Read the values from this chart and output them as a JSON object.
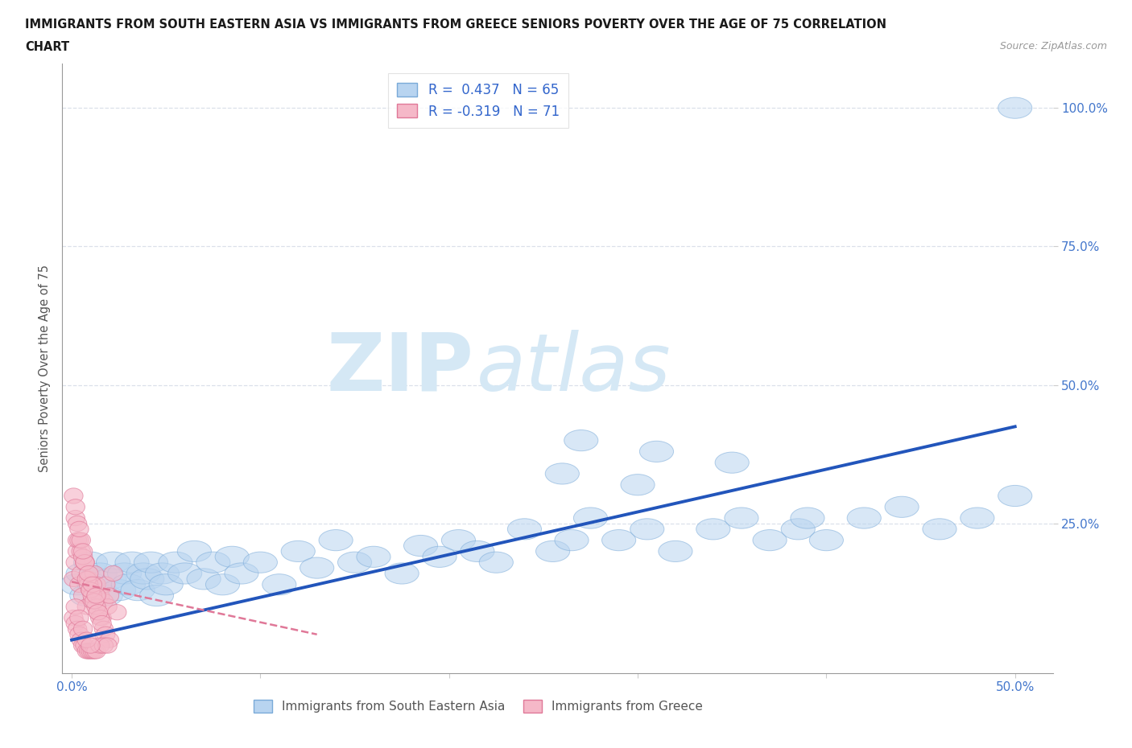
{
  "title_line1": "IMMIGRANTS FROM SOUTH EASTERN ASIA VS IMMIGRANTS FROM GREECE SENIORS POVERTY OVER THE AGE OF 75 CORRELATION",
  "title_line2": "CHART",
  "source": "Source: ZipAtlas.com",
  "ylabel": "Seniors Poverty Over the Age of 75",
  "xlim": [
    -0.005,
    0.52
  ],
  "ylim": [
    -0.02,
    1.08
  ],
  "xtick_labels": [
    "0.0%",
    "",
    "",
    "",
    "",
    "50.0%"
  ],
  "xtick_vals": [
    0.0,
    0.1,
    0.2,
    0.3,
    0.4,
    0.5
  ],
  "ytick_labels": [
    "100.0%",
    "75.0%",
    "50.0%",
    "25.0%"
  ],
  "ytick_vals": [
    1.0,
    0.75,
    0.5,
    0.25
  ],
  "legend_r_entries": [
    {
      "label": "R =  0.437   N = 65",
      "facecolor": "#b8d4f0",
      "edgecolor": "#7aaad8"
    },
    {
      "label": "R = -0.319   N = 71",
      "facecolor": "#f5b8c8",
      "edgecolor": "#e07898"
    }
  ],
  "legend_bottom_entries": [
    {
      "label": "Immigrants from South Eastern Asia",
      "facecolor": "#b8d4f0",
      "edgecolor": "#7aaad8"
    },
    {
      "label": "Immigrants from Greece",
      "facecolor": "#f5b8c8",
      "edgecolor": "#e07898"
    }
  ],
  "watermark_zip": "ZIP",
  "watermark_atlas": "atlas",
  "watermark_color": "#d5e8f5",
  "bg_color": "#ffffff",
  "blue_scatter_fc": "#b8d4f0",
  "blue_scatter_ec": "#7aaad8",
  "blue_line_color": "#2255bb",
  "pink_scatter_fc": "#f5b8c8",
  "pink_scatter_ec": "#e07898",
  "pink_line_color": "#e07898",
  "grid_color": "#d8dde8",
  "blue_line_x0": 0.0,
  "blue_line_y0": 0.04,
  "blue_line_x1": 0.5,
  "blue_line_y1": 0.425,
  "pink_line_x0": 0.0,
  "pink_line_y0": 0.145,
  "pink_line_x1": 0.13,
  "pink_line_y1": 0.05,
  "asia_x": [
    0.003,
    0.006,
    0.008,
    0.01,
    0.012,
    0.015,
    0.018,
    0.02,
    0.022,
    0.025,
    0.028,
    0.03,
    0.032,
    0.035,
    0.038,
    0.04,
    0.042,
    0.045,
    0.048,
    0.05,
    0.055,
    0.06,
    0.065,
    0.07,
    0.075,
    0.08,
    0.085,
    0.09,
    0.1,
    0.11,
    0.12,
    0.13,
    0.14,
    0.15,
    0.16,
    0.175,
    0.185,
    0.195,
    0.205,
    0.215,
    0.225,
    0.24,
    0.255,
    0.265,
    0.275,
    0.29,
    0.305,
    0.32,
    0.34,
    0.355,
    0.37,
    0.385,
    0.4,
    0.42,
    0.44,
    0.46,
    0.48,
    0.5,
    0.26,
    0.3,
    0.35,
    0.39,
    0.27,
    0.31,
    0.5
  ],
  "asia_y": [
    0.14,
    0.16,
    0.12,
    0.18,
    0.14,
    0.16,
    0.12,
    0.15,
    0.18,
    0.13,
    0.16,
    0.14,
    0.18,
    0.13,
    0.16,
    0.15,
    0.18,
    0.12,
    0.16,
    0.14,
    0.18,
    0.16,
    0.2,
    0.15,
    0.18,
    0.14,
    0.19,
    0.16,
    0.18,
    0.14,
    0.2,
    0.17,
    0.22,
    0.18,
    0.19,
    0.16,
    0.21,
    0.19,
    0.22,
    0.2,
    0.18,
    0.24,
    0.2,
    0.22,
    0.26,
    0.22,
    0.24,
    0.2,
    0.24,
    0.26,
    0.22,
    0.24,
    0.22,
    0.26,
    0.28,
    0.24,
    0.26,
    0.3,
    0.34,
    0.32,
    0.36,
    0.26,
    0.4,
    0.38,
    1.0
  ],
  "greece_x": [
    0.001,
    0.002,
    0.003,
    0.004,
    0.005,
    0.006,
    0.007,
    0.008,
    0.009,
    0.01,
    0.011,
    0.012,
    0.013,
    0.014,
    0.015,
    0.016,
    0.017,
    0.018,
    0.019,
    0.02,
    0.022,
    0.024,
    0.003,
    0.005,
    0.007,
    0.009,
    0.011,
    0.013,
    0.015,
    0.017,
    0.002,
    0.004,
    0.006,
    0.008,
    0.01,
    0.012,
    0.014,
    0.016,
    0.018,
    0.02,
    0.001,
    0.003,
    0.005,
    0.007,
    0.009,
    0.011,
    0.013,
    0.002,
    0.004,
    0.006,
    0.001,
    0.002,
    0.003,
    0.004,
    0.005,
    0.006,
    0.007,
    0.008,
    0.009,
    0.01,
    0.011,
    0.012,
    0.013,
    0.015,
    0.017,
    0.019,
    0.002,
    0.004,
    0.006,
    0.008,
    0.01
  ],
  "greece_y": [
    0.15,
    0.18,
    0.2,
    0.14,
    0.16,
    0.12,
    0.18,
    0.1,
    0.15,
    0.13,
    0.11,
    0.16,
    0.14,
    0.09,
    0.12,
    0.08,
    0.11,
    0.14,
    0.1,
    0.12,
    0.16,
    0.09,
    0.22,
    0.2,
    0.18,
    0.14,
    0.12,
    0.1,
    0.08,
    0.06,
    0.26,
    0.22,
    0.19,
    0.15,
    0.13,
    0.11,
    0.09,
    0.07,
    0.05,
    0.04,
    0.3,
    0.25,
    0.22,
    0.18,
    0.16,
    0.14,
    0.12,
    0.28,
    0.24,
    0.2,
    0.08,
    0.07,
    0.06,
    0.05,
    0.04,
    0.03,
    0.03,
    0.02,
    0.02,
    0.02,
    0.02,
    0.02,
    0.02,
    0.03,
    0.03,
    0.03,
    0.1,
    0.08,
    0.06,
    0.04,
    0.03
  ]
}
